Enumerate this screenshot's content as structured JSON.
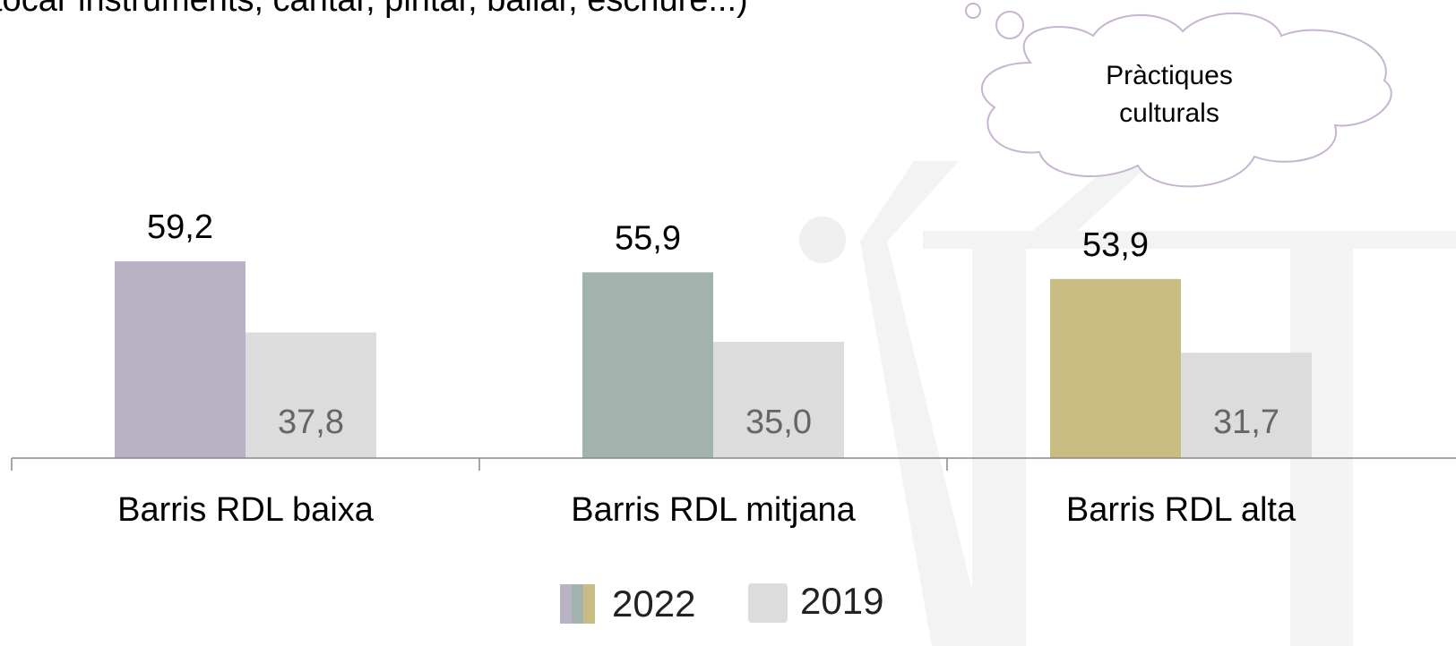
{
  "chart_data": {
    "type": "bar",
    "title": "tocar instruments, cantar, pintar, ballar, escriure...)",
    "annotation": [
      "Pràctiques",
      "culturals"
    ],
    "categories": [
      "Barris RDL baixa",
      "Barris RDL mitjana",
      "Barris RDL alta"
    ],
    "series": [
      {
        "name": "2022",
        "colors": [
          "#b8b2c4",
          "#a2b3ad",
          "#c8bc82"
        ],
        "values": [
          59.2,
          55.9,
          53.9
        ],
        "value_labels": [
          "59,2",
          "55,9",
          "53,9"
        ]
      },
      {
        "name": "2019",
        "color": "#dcdcdc",
        "values": [
          37.8,
          35.0,
          31.7
        ],
        "value_labels": [
          "37,8",
          "35,0",
          "31,7"
        ]
      }
    ],
    "ylim": [
      0,
      70
    ],
    "legend": "bottom"
  }
}
